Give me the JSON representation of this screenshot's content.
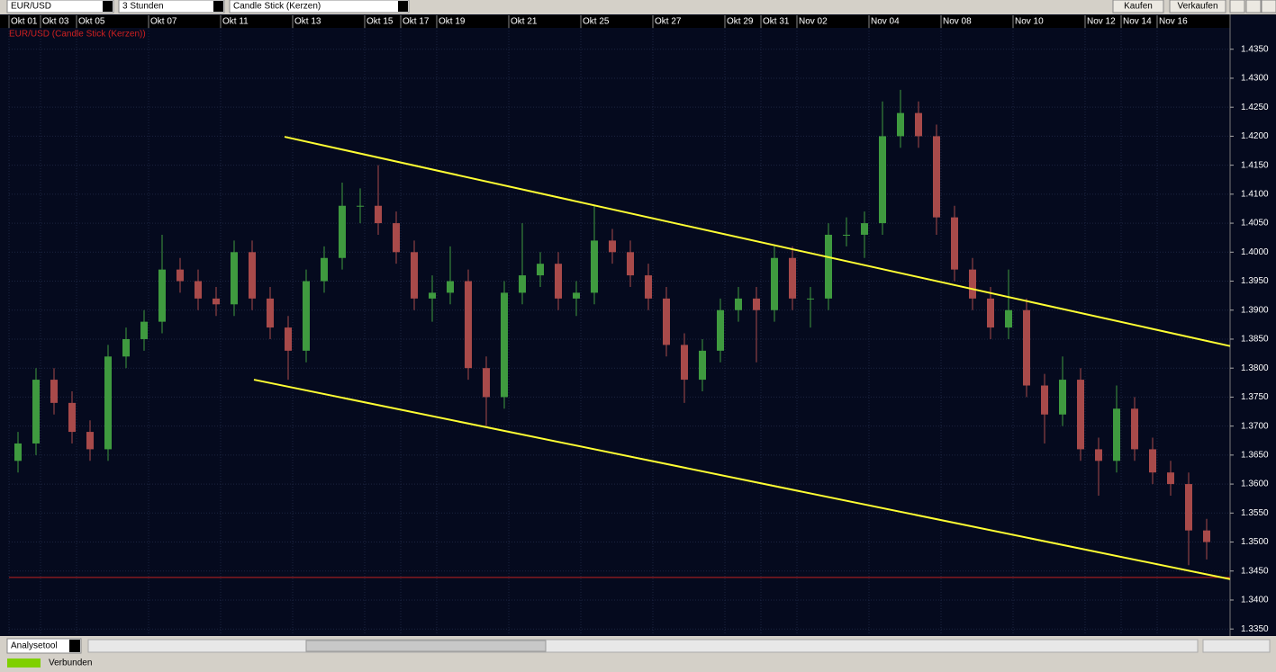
{
  "toolbar": {
    "symbol": "EUR/USD",
    "interval": "3 Stunden",
    "chart_style": "Candle Stick (Kerzen)",
    "buy": "Kaufen",
    "sell": "Verkaufen"
  },
  "bottom": {
    "tool": "Analysetool",
    "status": "Verbunden"
  },
  "chart_data": {
    "type": "candlestick",
    "title": "EUR/USD (Candle Stick (Kerzen))",
    "x": [
      1,
      3,
      5,
      7,
      9,
      11,
      13,
      15,
      17,
      19,
      21,
      23,
      25,
      27,
      29,
      31,
      33,
      35,
      37,
      39,
      41,
      43,
      45,
      47,
      49,
      51,
      53,
      55,
      57,
      59,
      61,
      63,
      65,
      67,
      69,
      71,
      73,
      75,
      77,
      79,
      81,
      83,
      85,
      87,
      89,
      91,
      93,
      95,
      97,
      99,
      101,
      103,
      105,
      107,
      109,
      111,
      113,
      115,
      117,
      119,
      121,
      123,
      125,
      127,
      129,
      131,
      133
    ],
    "open": [
      1.364,
      1.367,
      1.378,
      1.374,
      1.369,
      1.366,
      1.382,
      1.385,
      1.388,
      1.397,
      1.395,
      1.392,
      1.391,
      1.4,
      1.392,
      1.387,
      1.383,
      1.395,
      1.399,
      1.408,
      1.408,
      1.405,
      1.4,
      1.392,
      1.393,
      1.395,
      1.38,
      1.375,
      1.393,
      1.396,
      1.398,
      1.392,
      1.393,
      1.402,
      1.4,
      1.396,
      1.392,
      1.384,
      1.378,
      1.383,
      1.39,
      1.392,
      1.39,
      1.399,
      1.392,
      1.392,
      1.403,
      1.403,
      1.405,
      1.42,
      1.424,
      1.42,
      1.406,
      1.397,
      1.392,
      1.387,
      1.39,
      1.377,
      1.372,
      1.378,
      1.366,
      1.364,
      1.373,
      1.366,
      1.362,
      1.36,
      1.352
    ],
    "high": [
      1.369,
      1.38,
      1.38,
      1.376,
      1.371,
      1.384,
      1.387,
      1.39,
      1.403,
      1.399,
      1.397,
      1.394,
      1.402,
      1.402,
      1.394,
      1.389,
      1.397,
      1.401,
      1.412,
      1.411,
      1.415,
      1.407,
      1.402,
      1.396,
      1.401,
      1.397,
      1.382,
      1.395,
      1.405,
      1.4,
      1.4,
      1.395,
      1.408,
      1.404,
      1.402,
      1.398,
      1.394,
      1.386,
      1.385,
      1.392,
      1.394,
      1.394,
      1.401,
      1.401,
      1.394,
      1.405,
      1.406,
      1.407,
      1.426,
      1.428,
      1.426,
      1.422,
      1.408,
      1.399,
      1.394,
      1.397,
      1.392,
      1.379,
      1.382,
      1.38,
      1.368,
      1.377,
      1.375,
      1.368,
      1.364,
      1.362,
      1.354
    ],
    "low": [
      1.362,
      1.365,
      1.372,
      1.367,
      1.364,
      1.364,
      1.38,
      1.383,
      1.386,
      1.393,
      1.39,
      1.389,
      1.389,
      1.39,
      1.385,
      1.378,
      1.381,
      1.393,
      1.397,
      1.405,
      1.403,
      1.398,
      1.39,
      1.388,
      1.391,
      1.378,
      1.37,
      1.373,
      1.391,
      1.394,
      1.39,
      1.389,
      1.391,
      1.398,
      1.394,
      1.39,
      1.382,
      1.374,
      1.376,
      1.381,
      1.388,
      1.381,
      1.388,
      1.39,
      1.387,
      1.39,
      1.401,
      1.399,
      1.403,
      1.418,
      1.418,
      1.403,
      1.395,
      1.39,
      1.385,
      1.385,
      1.375,
      1.367,
      1.37,
      1.364,
      1.358,
      1.362,
      1.364,
      1.36,
      1.358,
      1.346,
      1.347
    ],
    "close": [
      1.367,
      1.378,
      1.374,
      1.369,
      1.366,
      1.382,
      1.385,
      1.388,
      1.397,
      1.395,
      1.392,
      1.391,
      1.4,
      1.392,
      1.387,
      1.383,
      1.395,
      1.399,
      1.408,
      1.408,
      1.405,
      1.4,
      1.392,
      1.393,
      1.395,
      1.38,
      1.375,
      1.393,
      1.396,
      1.398,
      1.392,
      1.393,
      1.402,
      1.4,
      1.396,
      1.392,
      1.384,
      1.378,
      1.383,
      1.39,
      1.392,
      1.39,
      1.399,
      1.392,
      1.392,
      1.403,
      1.403,
      1.405,
      1.42,
      1.424,
      1.42,
      1.406,
      1.397,
      1.392,
      1.387,
      1.39,
      1.377,
      1.372,
      1.378,
      1.366,
      1.364,
      1.373,
      1.366,
      1.362,
      1.36,
      1.352,
      1.35
    ],
    "up_color": "#3f9a3f",
    "down_color": "#a84a4a",
    "xlim": [
      0,
      135.6
    ],
    "xticks": [
      {
        "value": 0,
        "label": "Okt 01"
      },
      {
        "value": 3.5,
        "label": "Okt 03"
      },
      {
        "value": 7.5,
        "label": "Okt 05"
      },
      {
        "value": 15.5,
        "label": "Okt 07"
      },
      {
        "value": 23.5,
        "label": "Okt 11"
      },
      {
        "value": 31.5,
        "label": "Okt 13"
      },
      {
        "value": 39.5,
        "label": "Okt 15"
      },
      {
        "value": 43.5,
        "label": "Okt 17"
      },
      {
        "value": 47.5,
        "label": "Okt 19"
      },
      {
        "value": 55.5,
        "label": "Okt 21"
      },
      {
        "value": 63.5,
        "label": "Okt 25"
      },
      {
        "value": 71.5,
        "label": "Okt 27"
      },
      {
        "value": 79.5,
        "label": "Okt 29"
      },
      {
        "value": 83.5,
        "label": "Okt 31"
      },
      {
        "value": 87.5,
        "label": "Nov 02"
      },
      {
        "value": 95.5,
        "label": "Nov 04"
      },
      {
        "value": 103.5,
        "label": "Nov 08"
      },
      {
        "value": 111.5,
        "label": "Nov 10"
      },
      {
        "value": 119.5,
        "label": "Nov 12"
      },
      {
        "value": 123.5,
        "label": "Nov 14"
      },
      {
        "value": 127.5,
        "label": "Nov 16"
      }
    ],
    "ylim": [
      1.3341,
      1.4407
    ],
    "yticks": [
      {
        "value": 1.335,
        "label": "1.3350"
      },
      {
        "value": 1.34,
        "label": "1.3400"
      },
      {
        "value": 1.345,
        "label": "1.3450"
      },
      {
        "value": 1.35,
        "label": "1.3500"
      },
      {
        "value": 1.355,
        "label": "1.3550"
      },
      {
        "value": 1.36,
        "label": "1.3600"
      },
      {
        "value": 1.365,
        "label": "1.3650"
      },
      {
        "value": 1.37,
        "label": "1.3700"
      },
      {
        "value": 1.375,
        "label": "1.3750"
      },
      {
        "value": 1.38,
        "label": "1.3800"
      },
      {
        "value": 1.385,
        "label": "1.3850"
      },
      {
        "value": 1.39,
        "label": "1.3900"
      },
      {
        "value": 1.395,
        "label": "1.3950"
      },
      {
        "value": 1.4,
        "label": "1.4000"
      },
      {
        "value": 1.405,
        "label": "1.4050"
      },
      {
        "value": 1.41,
        "label": "1.4100"
      },
      {
        "value": 1.415,
        "label": "1.4150"
      },
      {
        "value": 1.42,
        "label": "1.4200"
      },
      {
        "value": 1.425,
        "label": "1.4250"
      },
      {
        "value": 1.43,
        "label": "1.4300"
      },
      {
        "value": 1.435,
        "label": "1.4350"
      }
    ],
    "grid": true,
    "trendlines": [
      {
        "x": [
          30.6,
          135.6
        ],
        "y": [
          1.4199,
          1.3838
        ]
      },
      {
        "x": [
          27.2,
          135.6
        ],
        "y": [
          1.378,
          1.3436
        ]
      }
    ],
    "trendline_color": "#ffff33",
    "reference_line": 1.3439,
    "reference_color": "#c02020"
  }
}
